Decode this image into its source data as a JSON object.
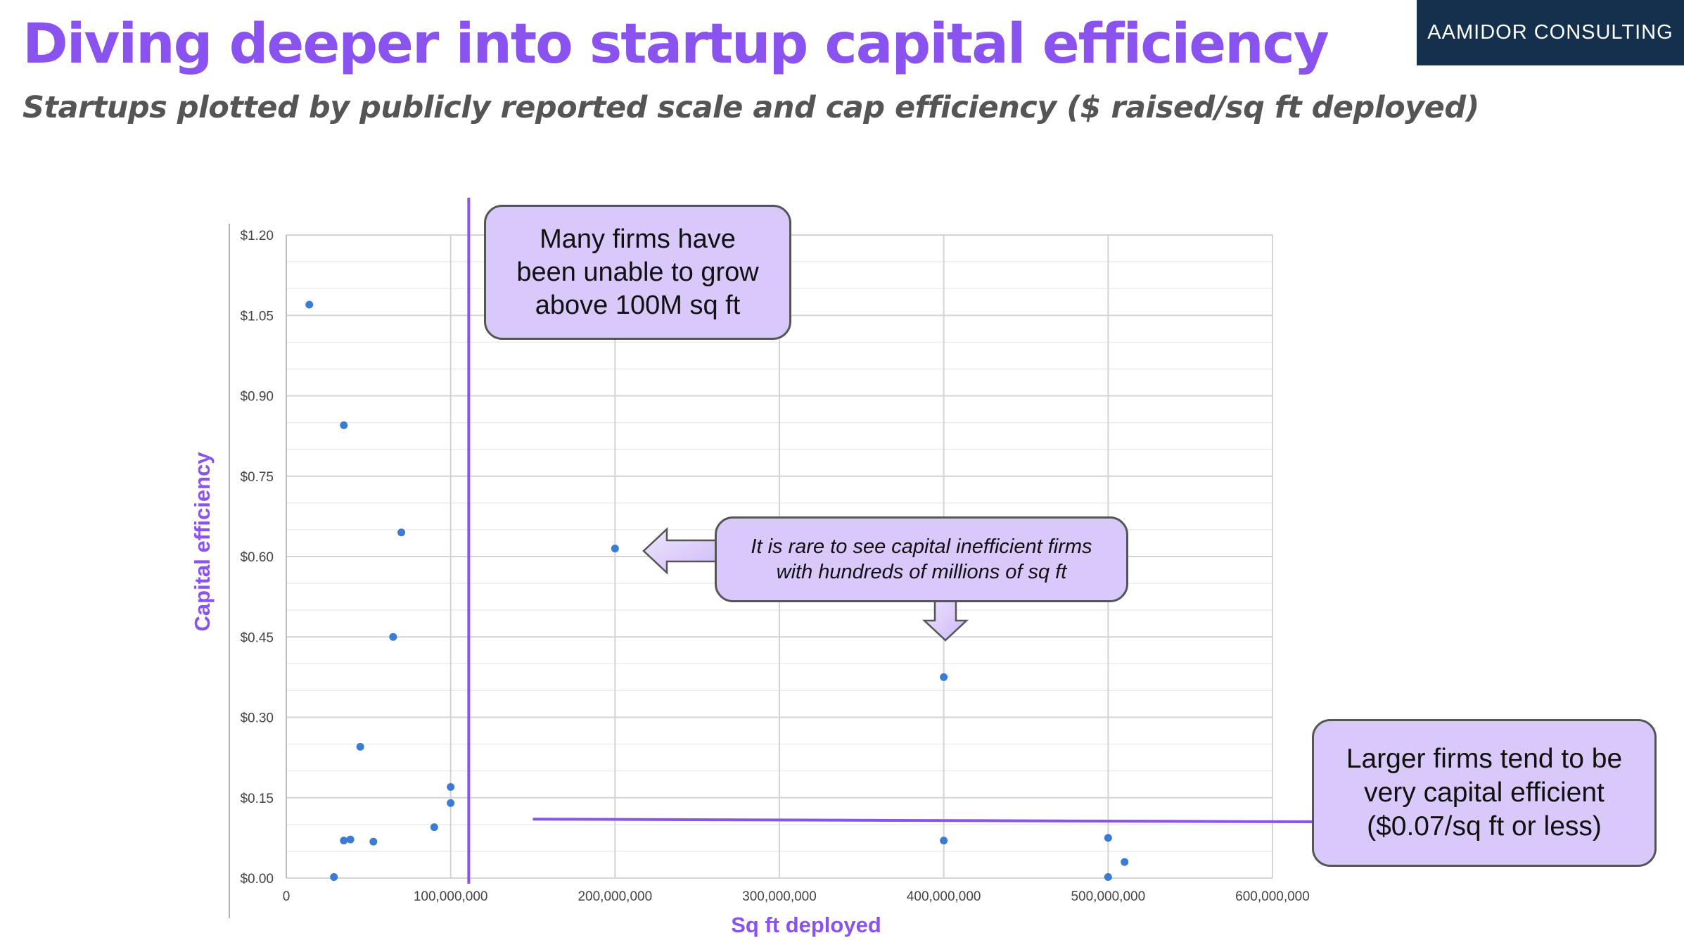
{
  "header": {
    "title": "Diving deeper into startup capital efficiency",
    "subtitle": "Startups plotted by publicly reported scale and cap efficiency ($ raised/sq ft deployed)",
    "brand": "AAMIDOR CONSULTING"
  },
  "colors": {
    "accent": "#8a52ee",
    "point": "#3a7bd5",
    "brand_bg": "#14304d",
    "callout_bg": "#d9c9fb",
    "grid": "#dddddd"
  },
  "chart_data": {
    "type": "scatter",
    "title": "",
    "xlabel": "Sq ft deployed",
    "ylabel": "Capital efficiency",
    "xlim": [
      0,
      600000000
    ],
    "ylim": [
      0,
      1.2
    ],
    "x_ticks": [
      0,
      100000000,
      200000000,
      300000000,
      400000000,
      500000000,
      600000000
    ],
    "x_tick_labels": [
      "0",
      "100,000,000",
      "200,000,000",
      "300,000,000",
      "400,000,000",
      "500,000,000",
      "600,000,000"
    ],
    "y_ticks": [
      0,
      0.15,
      0.3,
      0.45,
      0.6,
      0.75,
      0.9,
      1.05,
      1.2
    ],
    "y_tick_labels": [
      "$0.00",
      "$0.15",
      "$0.30",
      "$0.45",
      "$0.60",
      "$0.75",
      "$0.90",
      "$1.05",
      "$1.20"
    ],
    "y_minor_step": 0.05,
    "grid": true,
    "legend": "none",
    "points": [
      {
        "x": 14000000,
        "y": 1.07
      },
      {
        "x": 35000000,
        "y": 0.845
      },
      {
        "x": 70000000,
        "y": 0.645
      },
      {
        "x": 65000000,
        "y": 0.45
      },
      {
        "x": 45000000,
        "y": 0.245
      },
      {
        "x": 100000000,
        "y": 0.17
      },
      {
        "x": 100000000,
        "y": 0.14
      },
      {
        "x": 90000000,
        "y": 0.095
      },
      {
        "x": 35000000,
        "y": 0.07
      },
      {
        "x": 39000000,
        "y": 0.072
      },
      {
        "x": 53000000,
        "y": 0.068
      },
      {
        "x": 29000000,
        "y": 0.002
      },
      {
        "x": 200000000,
        "y": 0.615
      },
      {
        "x": 400000000,
        "y": 0.375
      },
      {
        "x": 400000000,
        "y": 0.07
      },
      {
        "x": 500000000,
        "y": 0.075
      },
      {
        "x": 510000000,
        "y": 0.03
      },
      {
        "x": 500000000,
        "y": 0.002
      }
    ],
    "reference_line_x": 111000000,
    "trend_line": {
      "x": [
        150000000,
        625000000
      ],
      "y": [
        0.11,
        0.105
      ]
    },
    "annotations": [
      "Many firms have been unable to grow above 100M sq ft",
      "It is rare to see capital inefficient firms with hundreds of millions of sq ft",
      "Larger firms tend to be very capital efficient ($0.07/sq ft or less)"
    ]
  },
  "callouts": {
    "growth": {
      "line1": "Many firms have",
      "line2": "been unable to grow",
      "line3": "above 100M sq ft"
    },
    "rare": {
      "line1": "It is rare to see capital inefficient firms",
      "line2": "with hundreds of millions of sq ft"
    },
    "large": {
      "line1": "Larger firms tend to be",
      "line2": "very capital efficient",
      "line3": "($0.07/sq ft or less)"
    }
  }
}
